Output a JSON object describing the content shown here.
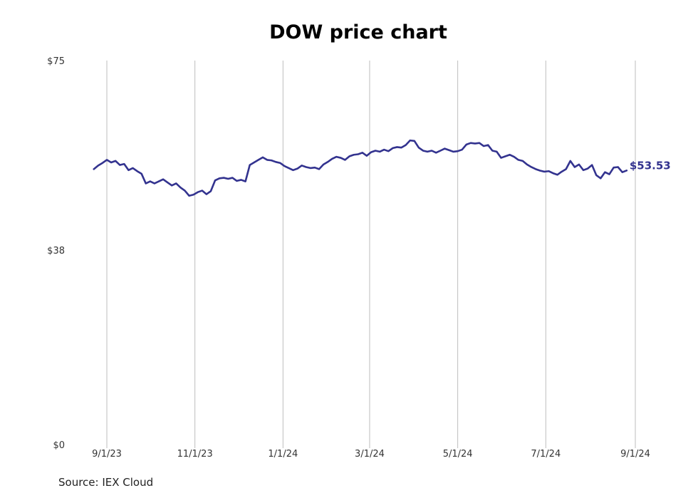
{
  "chart_data": {
    "type": "line",
    "title": "DOW price chart",
    "xlabel": "",
    "ylabel": "",
    "ylim": [
      0,
      75
    ],
    "y_ticks": [
      {
        "value": 75,
        "label": "$75"
      },
      {
        "value": 38,
        "label": "$38"
      },
      {
        "value": 0,
        "label": "$0"
      }
    ],
    "x_ticks": [
      {
        "date": "2023-09-01",
        "label": "9/1/23"
      },
      {
        "date": "2023-11-01",
        "label": "11/1/23"
      },
      {
        "date": "2024-01-01",
        "label": "1/1/24"
      },
      {
        "date": "2024-03-01",
        "label": "3/1/24"
      },
      {
        "date": "2024-05-01",
        "label": "5/1/24"
      },
      {
        "date": "2024-07-01",
        "label": "7/1/24"
      },
      {
        "date": "2024-09-01",
        "label": "9/1/24"
      }
    ],
    "xlim": [
      "2023-08-23",
      "2024-09-01"
    ],
    "grid": "vertical",
    "line_color": "#33338f",
    "last_value_label": "$53.53",
    "series": [
      {
        "points": [
          [
            "2023-08-23",
            53.8
          ],
          [
            "2023-08-26",
            54.5
          ],
          [
            "2023-08-29",
            55.0
          ],
          [
            "2023-09-01",
            55.6
          ],
          [
            "2023-09-04",
            55.1
          ],
          [
            "2023-09-07",
            55.4
          ],
          [
            "2023-09-10",
            54.6
          ],
          [
            "2023-09-13",
            54.8
          ],
          [
            "2023-09-16",
            53.6
          ],
          [
            "2023-09-19",
            54.0
          ],
          [
            "2023-09-22",
            53.4
          ],
          [
            "2023-09-25",
            52.9
          ],
          [
            "2023-09-28",
            51.0
          ],
          [
            "2023-10-01",
            51.4
          ],
          [
            "2023-10-04",
            51.0
          ],
          [
            "2023-10-07",
            51.4
          ],
          [
            "2023-10-10",
            51.8
          ],
          [
            "2023-10-13",
            51.2
          ],
          [
            "2023-10-16",
            50.6
          ],
          [
            "2023-10-19",
            51.0
          ],
          [
            "2023-10-22",
            50.2
          ],
          [
            "2023-10-25",
            49.6
          ],
          [
            "2023-10-28",
            48.6
          ],
          [
            "2023-10-31",
            48.8
          ],
          [
            "2023-11-03",
            49.3
          ],
          [
            "2023-11-06",
            49.6
          ],
          [
            "2023-11-09",
            48.9
          ],
          [
            "2023-11-12",
            49.5
          ],
          [
            "2023-11-15",
            51.6
          ],
          [
            "2023-11-18",
            52.0
          ],
          [
            "2023-11-21",
            52.1
          ],
          [
            "2023-11-24",
            51.9
          ],
          [
            "2023-11-27",
            52.1
          ],
          [
            "2023-11-30",
            51.5
          ],
          [
            "2023-12-03",
            51.7
          ],
          [
            "2023-12-06",
            51.4
          ],
          [
            "2023-12-09",
            54.6
          ],
          [
            "2023-12-12",
            55.1
          ],
          [
            "2023-12-15",
            55.6
          ],
          [
            "2023-12-18",
            56.1
          ],
          [
            "2023-12-21",
            55.6
          ],
          [
            "2023-12-24",
            55.5
          ],
          [
            "2023-12-27",
            55.2
          ],
          [
            "2023-12-30",
            55.0
          ],
          [
            "2024-01-02",
            54.4
          ],
          [
            "2024-01-05",
            54.0
          ],
          [
            "2024-01-08",
            53.6
          ],
          [
            "2024-01-11",
            53.9
          ],
          [
            "2024-01-14",
            54.5
          ],
          [
            "2024-01-17",
            54.2
          ],
          [
            "2024-01-20",
            54.0
          ],
          [
            "2024-01-23",
            54.1
          ],
          [
            "2024-01-26",
            53.8
          ],
          [
            "2024-01-29",
            54.7
          ],
          [
            "2024-02-01",
            55.2
          ],
          [
            "2024-02-04",
            55.8
          ],
          [
            "2024-02-07",
            56.2
          ],
          [
            "2024-02-10",
            56.0
          ],
          [
            "2024-02-13",
            55.6
          ],
          [
            "2024-02-16",
            56.3
          ],
          [
            "2024-02-19",
            56.6
          ],
          [
            "2024-02-22",
            56.7
          ],
          [
            "2024-02-25",
            57.0
          ],
          [
            "2024-02-28",
            56.4
          ],
          [
            "2024-03-02",
            57.1
          ],
          [
            "2024-03-05",
            57.4
          ],
          [
            "2024-03-08",
            57.2
          ],
          [
            "2024-03-11",
            57.6
          ],
          [
            "2024-03-14",
            57.3
          ],
          [
            "2024-03-17",
            57.9
          ],
          [
            "2024-03-20",
            58.1
          ],
          [
            "2024-03-23",
            58.0
          ],
          [
            "2024-03-26",
            58.5
          ],
          [
            "2024-03-29",
            59.4
          ],
          [
            "2024-04-01",
            59.3
          ],
          [
            "2024-04-04",
            58.0
          ],
          [
            "2024-04-07",
            57.4
          ],
          [
            "2024-04-10",
            57.2
          ],
          [
            "2024-04-13",
            57.4
          ],
          [
            "2024-04-16",
            57.0
          ],
          [
            "2024-04-19",
            57.4
          ],
          [
            "2024-04-22",
            57.8
          ],
          [
            "2024-04-25",
            57.5
          ],
          [
            "2024-04-28",
            57.2
          ],
          [
            "2024-05-01",
            57.3
          ],
          [
            "2024-05-04",
            57.6
          ],
          [
            "2024-05-07",
            58.6
          ],
          [
            "2024-05-10",
            58.9
          ],
          [
            "2024-05-13",
            58.8
          ],
          [
            "2024-05-16",
            58.9
          ],
          [
            "2024-05-19",
            58.3
          ],
          [
            "2024-05-22",
            58.5
          ],
          [
            "2024-05-25",
            57.4
          ],
          [
            "2024-05-28",
            57.2
          ],
          [
            "2024-05-31",
            56.0
          ],
          [
            "2024-06-03",
            56.3
          ],
          [
            "2024-06-06",
            56.6
          ],
          [
            "2024-06-09",
            56.2
          ],
          [
            "2024-06-12",
            55.6
          ],
          [
            "2024-06-15",
            55.4
          ],
          [
            "2024-06-18",
            54.7
          ],
          [
            "2024-06-21",
            54.2
          ],
          [
            "2024-06-24",
            53.8
          ],
          [
            "2024-06-27",
            53.5
          ],
          [
            "2024-06-30",
            53.3
          ],
          [
            "2024-07-03",
            53.4
          ],
          [
            "2024-07-06",
            53.0
          ],
          [
            "2024-07-09",
            52.7
          ],
          [
            "2024-07-12",
            53.3
          ],
          [
            "2024-07-15",
            53.8
          ],
          [
            "2024-07-18",
            55.4
          ],
          [
            "2024-07-21",
            54.2
          ],
          [
            "2024-07-24",
            54.7
          ],
          [
            "2024-07-27",
            53.6
          ],
          [
            "2024-07-30",
            53.9
          ],
          [
            "2024-08-02",
            54.6
          ],
          [
            "2024-08-05",
            52.6
          ],
          [
            "2024-08-08",
            52.0
          ],
          [
            "2024-08-11",
            53.2
          ],
          [
            "2024-08-14",
            52.8
          ],
          [
            "2024-08-17",
            54.1
          ],
          [
            "2024-08-20",
            54.2
          ],
          [
            "2024-08-23",
            53.2
          ],
          [
            "2024-08-26",
            53.53
          ]
        ]
      }
    ]
  },
  "footer": {
    "source": "Source: IEX Cloud"
  }
}
